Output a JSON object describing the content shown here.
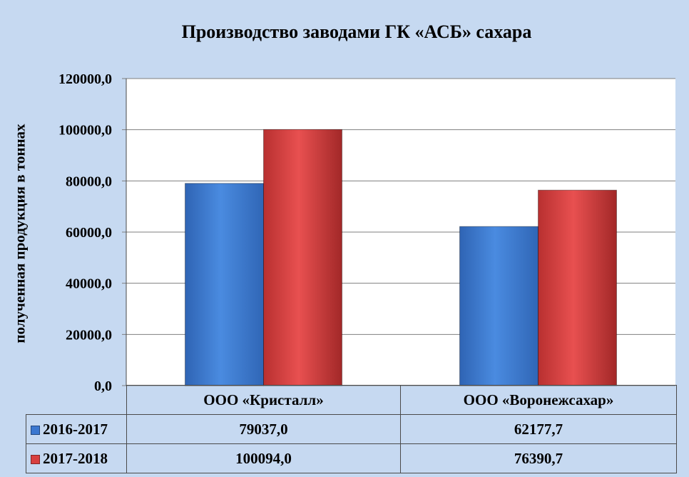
{
  "chart_data": {
    "type": "bar",
    "title": "Производство заводами ГК «АСБ» сахара",
    "ylabel": "полученная продукция в тоннах",
    "xlabel": "",
    "ylim": [
      0,
      120000
    ],
    "yticks": [
      "0,0",
      "20000,0",
      "40000,0",
      "60000,0",
      "80000,0",
      "100000,0",
      "120000,0"
    ],
    "ytick_values": [
      0,
      20000,
      40000,
      60000,
      80000,
      100000,
      120000
    ],
    "categories": [
      "ООО «Кристалл»",
      "ООО «Воронежсахар»"
    ],
    "series": [
      {
        "name": "2016-2017",
        "values": [
          79037.0,
          62177.7
        ],
        "labels": [
          "79037,0",
          "62177,7"
        ],
        "color": "#3c78d0"
      },
      {
        "name": "2017-2018",
        "values": [
          100094.0,
          76390.7
        ],
        "labels": [
          "100094,0",
          "76390,7"
        ],
        "color": "#d84040"
      }
    ],
    "grid": true,
    "legend": "data-table"
  }
}
